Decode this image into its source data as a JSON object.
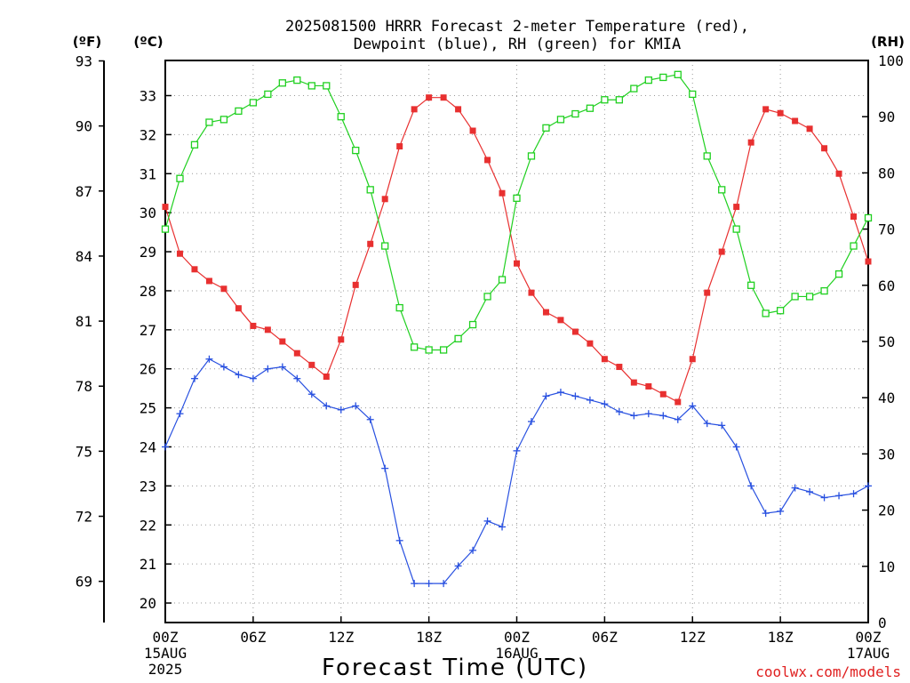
{
  "title_line1": "2025081500 HRRR Forecast 2-meter Temperature (red),",
  "title_line2": "Dewpoint (blue), RH (green) for KMIA",
  "unit_f": "(ºF)",
  "unit_c": "(ºC)",
  "unit_rh": "(RH)",
  "credit": "coolwx.com/models",
  "colors": {
    "temperature": "#e83030",
    "dewpoint": "#2850e0",
    "rh": "#20d020",
    "frame": "#000000",
    "credit": "#e02020"
  },
  "chart_data": {
    "type": "line",
    "title": "2025081500 HRRR Forecast 2-meter Temperature (red), Dewpoint (blue), RH (green) for KMIA",
    "xlabel": "Forecast Time (UTC)",
    "x_unit": "forecast hour",
    "xlim": [
      0,
      48
    ],
    "x_ticks": [
      {
        "hour": 0,
        "lines": [
          "00Z",
          "15AUG",
          "2025"
        ]
      },
      {
        "hour": 6,
        "lines": [
          "06Z"
        ]
      },
      {
        "hour": 12,
        "lines": [
          "12Z"
        ]
      },
      {
        "hour": 18,
        "lines": [
          "18Z"
        ]
      },
      {
        "hour": 24,
        "lines": [
          "00Z",
          "16AUG"
        ]
      },
      {
        "hour": 30,
        "lines": [
          "06Z"
        ]
      },
      {
        "hour": 36,
        "lines": [
          "12Z"
        ]
      },
      {
        "hour": 42,
        "lines": [
          "18Z"
        ]
      },
      {
        "hour": 48,
        "lines": [
          "00Z",
          "17AUG"
        ]
      }
    ],
    "y_left_c": {
      "label": "(ºC)",
      "lim": [
        19.5,
        33.9
      ],
      "ticks": [
        20,
        21,
        22,
        23,
        24,
        25,
        26,
        27,
        28,
        29,
        30,
        31,
        32,
        33
      ]
    },
    "y_left_f": {
      "label": "(ºF)",
      "ticks": [
        69,
        72,
        75,
        78,
        81,
        84,
        87,
        90,
        93
      ]
    },
    "y_right_rh": {
      "label": "(RH)",
      "lim": [
        0,
        100
      ],
      "ticks": [
        0,
        10,
        20,
        30,
        40,
        50,
        60,
        70,
        80,
        90,
        100
      ]
    },
    "grid": true,
    "series": [
      {
        "name": "Temperature",
        "axis": "c",
        "marker": "filled-square",
        "x": [
          0,
          1,
          2,
          3,
          4,
          5,
          6,
          7,
          8,
          9,
          10,
          11,
          12,
          13,
          14,
          15,
          16,
          17,
          18,
          19,
          20,
          21,
          22,
          23,
          24,
          25,
          26,
          27,
          28,
          29,
          30,
          31,
          32,
          33,
          34,
          35,
          36,
          37,
          38,
          39,
          40,
          41,
          42,
          43,
          44,
          45,
          46,
          47,
          48
        ],
        "values": [
          30.15,
          28.95,
          28.55,
          28.25,
          28.05,
          27.55,
          27.1,
          27.0,
          26.7,
          26.4,
          26.1,
          25.8,
          26.75,
          28.15,
          29.2,
          30.35,
          31.7,
          32.65,
          32.95,
          32.95,
          32.65,
          32.1,
          31.35,
          30.5,
          28.7,
          27.95,
          27.45,
          27.25,
          26.95,
          26.65,
          26.25,
          26.05,
          25.65,
          25.55,
          25.35,
          25.15,
          26.25,
          27.95,
          29.0,
          30.15,
          31.8,
          32.65,
          32.55,
          32.35,
          32.15,
          31.65,
          31.0,
          29.9,
          28.75
        ]
      },
      {
        "name": "Dewpoint",
        "axis": "c",
        "marker": "plus",
        "x": [
          0,
          1,
          2,
          3,
          4,
          5,
          6,
          7,
          8,
          9,
          10,
          11,
          12,
          13,
          14,
          15,
          16,
          17,
          18,
          19,
          20,
          21,
          22,
          23,
          24,
          25,
          26,
          27,
          28,
          29,
          30,
          31,
          32,
          33,
          34,
          35,
          36,
          37,
          38,
          39,
          40,
          41,
          42,
          43,
          44,
          45,
          46,
          47,
          48
        ],
        "values": [
          24.0,
          24.85,
          25.75,
          26.25,
          26.05,
          25.85,
          25.75,
          26.0,
          26.05,
          25.75,
          25.35,
          25.05,
          24.95,
          25.05,
          24.7,
          23.45,
          21.6,
          20.5,
          20.5,
          20.5,
          20.95,
          21.35,
          22.1,
          21.95,
          23.9,
          24.65,
          25.3,
          25.4,
          25.3,
          25.2,
          25.1,
          24.9,
          24.8,
          24.85,
          24.8,
          24.7,
          25.05,
          24.6,
          24.55,
          24.0,
          23.0,
          22.3,
          22.35,
          22.95,
          22.85,
          22.7,
          22.75,
          22.8,
          23.0
        ]
      },
      {
        "name": "RH",
        "axis": "rh",
        "marker": "open-square",
        "x": [
          0,
          1,
          2,
          3,
          4,
          5,
          6,
          7,
          8,
          9,
          10,
          11,
          12,
          13,
          14,
          15,
          16,
          17,
          18,
          19,
          20,
          21,
          22,
          23,
          24,
          25,
          26,
          27,
          28,
          29,
          30,
          31,
          32,
          33,
          34,
          35,
          36,
          37,
          38,
          39,
          40,
          41,
          42,
          43,
          44,
          45,
          46,
          47,
          48
        ],
        "values": [
          70,
          79,
          85,
          89,
          89.5,
          91,
          92.5,
          94,
          96,
          96.5,
          95.5,
          95.5,
          90,
          84,
          77,
          67,
          56,
          49,
          48.5,
          48.5,
          50.5,
          53,
          58,
          61,
          75.5,
          83,
          88,
          89.5,
          90.5,
          91.5,
          93,
          93,
          95,
          96.5,
          97,
          97.5,
          94,
          83,
          77,
          70,
          60,
          55,
          55.5,
          58,
          58,
          59,
          62,
          67,
          72
        ]
      }
    ]
  }
}
